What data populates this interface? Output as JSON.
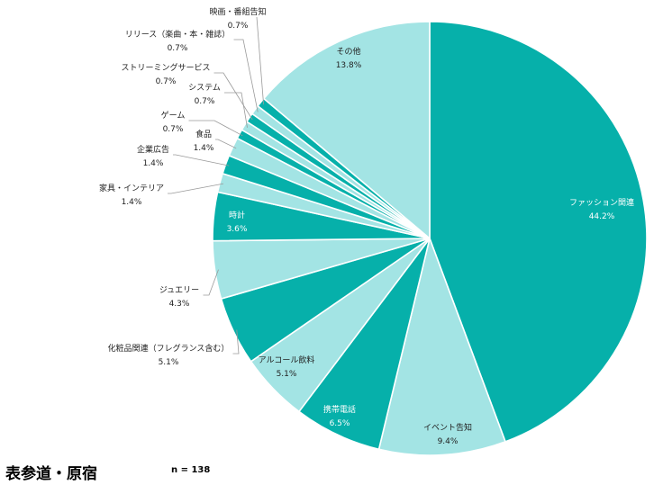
{
  "chart_data": {
    "type": "pie",
    "title": "表参道・原宿",
    "n_label": "n = 138",
    "colors": {
      "dark": "#06b0aa",
      "light": "#a3e4e4"
    },
    "slices": [
      {
        "label": "ファッション関連",
        "value": 44.2,
        "display": "44.2%",
        "fill": "dark"
      },
      {
        "label": "イベント告知",
        "value": 9.4,
        "display": "9.4%",
        "fill": "light"
      },
      {
        "label": "携帯電話",
        "value": 6.5,
        "display": "6.5%",
        "fill": "dark"
      },
      {
        "label": "アルコール飲料",
        "value": 5.1,
        "display": "5.1%",
        "fill": "light"
      },
      {
        "label": "化粧品関連（フレグランス含む）",
        "value": 5.1,
        "display": "5.1%",
        "fill": "dark"
      },
      {
        "label": "ジュエリー",
        "value": 4.3,
        "display": "4.3%",
        "fill": "light"
      },
      {
        "label": "時計",
        "value": 3.6,
        "display": "3.6%",
        "fill": "dark"
      },
      {
        "label": "家具・インテリア",
        "value": 1.4,
        "display": "1.4%",
        "fill": "light"
      },
      {
        "label": "企業広告",
        "value": 1.4,
        "display": "1.4%",
        "fill": "dark"
      },
      {
        "label": "食品",
        "value": 1.4,
        "display": "1.4%",
        "fill": "light"
      },
      {
        "label": "ゲーム",
        "value": 0.7,
        "display": "0.7%",
        "fill": "dark"
      },
      {
        "label": "システム",
        "value": 0.7,
        "display": "0.7%",
        "fill": "light"
      },
      {
        "label": "ストリーミングサービス",
        "value": 0.7,
        "display": "0.7%",
        "fill": "dark"
      },
      {
        "label": "リリース（楽曲・本・雑誌）",
        "value": 0.7,
        "display": "0.7%",
        "fill": "light"
      },
      {
        "label": "映画・番組告知",
        "value": 0.7,
        "display": "0.7%",
        "fill": "dark"
      },
      {
        "label": "その他",
        "value": 13.8,
        "display": "13.8%",
        "fill": "light"
      }
    ]
  }
}
